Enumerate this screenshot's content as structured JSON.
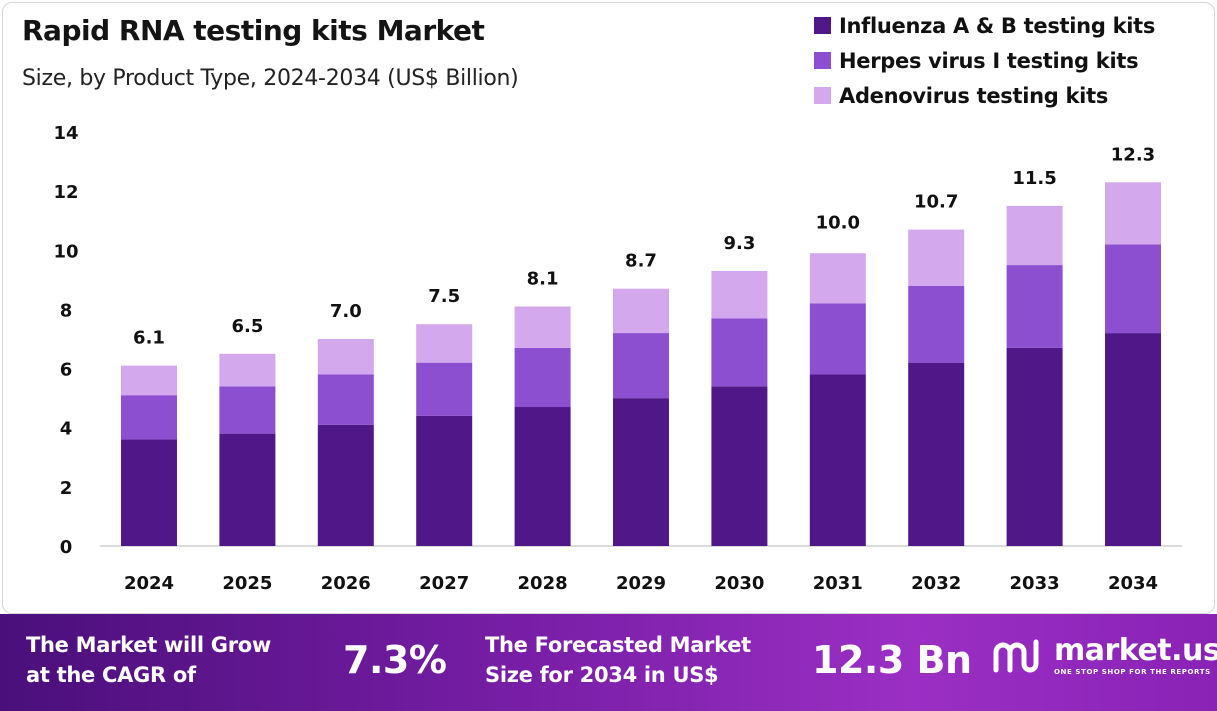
{
  "chart_data": {
    "type": "bar",
    "stacked": true,
    "title": "Rapid RNA testing kits Market",
    "subtitle": "Size, by Product Type, 2024-2034 (US$ Billion)",
    "categories": [
      "2024",
      "2025",
      "2026",
      "2027",
      "2028",
      "2029",
      "2030",
      "2031",
      "2032",
      "2033",
      "2034"
    ],
    "series": [
      {
        "name": "Influenza A & B testing kits",
        "color": "#4f1787",
        "values": [
          3.6,
          3.8,
          4.1,
          4.4,
          4.7,
          5.0,
          5.4,
          5.8,
          6.2,
          6.7,
          7.2
        ]
      },
      {
        "name": "Herpes virus I testing kits",
        "color": "#8b4fcf",
        "values": [
          1.5,
          1.6,
          1.7,
          1.8,
          2.0,
          2.2,
          2.3,
          2.4,
          2.6,
          2.8,
          3.0
        ]
      },
      {
        "name": "Adenovirus testing kits",
        "color": "#d4a8ec",
        "values": [
          1.0,
          1.1,
          1.2,
          1.3,
          1.4,
          1.5,
          1.6,
          1.7,
          1.9,
          2.0,
          2.1
        ]
      }
    ],
    "totals": [
      "6.1",
      "6.5",
      "7.0",
      "7.5",
      "8.1",
      "8.7",
      "9.3",
      "10.0",
      "10.7",
      "11.5",
      "12.3"
    ],
    "y_ticks": [
      "0",
      "2",
      "4",
      "6",
      "8",
      "10",
      "12",
      "14"
    ],
    "ylim": [
      0,
      14
    ],
    "legend_position": "top-right",
    "grid": false
  },
  "footer": {
    "cagr_text_line1": "The Market will Grow",
    "cagr_text_line2": "at the CAGR of",
    "cagr_value": "7.3%",
    "forecast_text_line1": "The Forecasted Market",
    "forecast_text_line2": "Size for 2034 in US$",
    "forecast_value": "12.3 Bn",
    "brand_name": "market.us",
    "brand_tagline": "ONE STOP SHOP FOR THE REPORTS"
  }
}
